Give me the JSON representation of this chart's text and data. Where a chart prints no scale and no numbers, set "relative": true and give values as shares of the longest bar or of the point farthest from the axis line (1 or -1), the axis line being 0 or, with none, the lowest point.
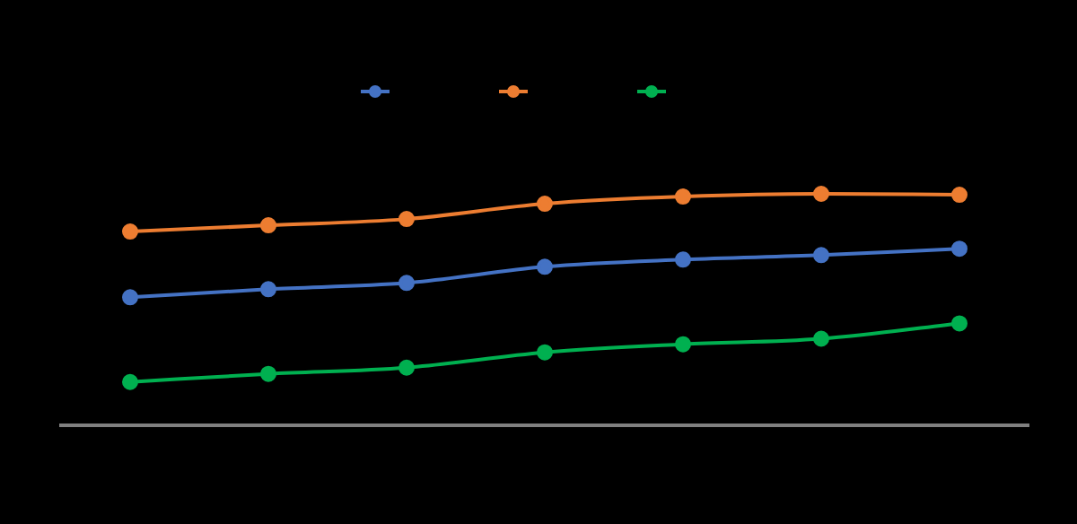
{
  "chart_data": {
    "type": "line",
    "relative": true,
    "categories": [
      null,
      null,
      null,
      null,
      null,
      null,
      null
    ],
    "series": [
      {
        "color": "#4472c4",
        "values": [
          0.553,
          0.588,
          0.615,
          0.685,
          0.716,
          0.735,
          0.763
        ]
      },
      {
        "color": "#ed7d31",
        "values": [
          0.837,
          0.864,
          0.891,
          0.957,
          0.988,
          1,
          0.996
        ]
      },
      {
        "color": "#00b050",
        "values": [
          0.187,
          0.222,
          0.249,
          0.315,
          0.35,
          0.374,
          0.44
        ]
      }
    ],
    "marker": "circle",
    "line_style": "solid"
  }
}
